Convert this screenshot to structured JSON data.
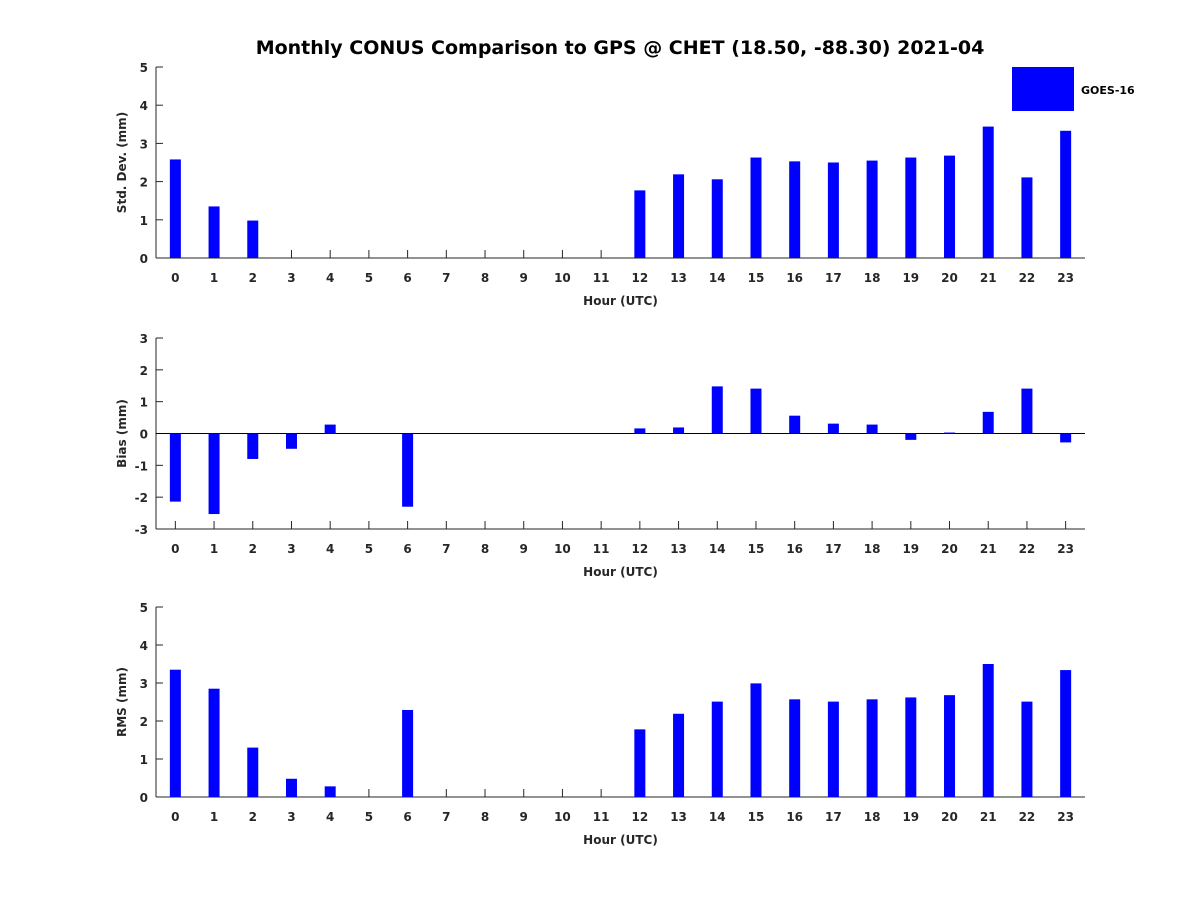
{
  "chart_data": {
    "title": "Monthly CONUS Comparison to GPS @ CHET (18.50, -88.30) 2021-04",
    "legend": {
      "label": "GOES-16",
      "placement": "top-right",
      "color": "#0000ff"
    },
    "bar_color": "#0000ff",
    "panels": [
      {
        "type": "bar",
        "ylabel": "Std. Dev. (mm)",
        "xlabel": "Hour (UTC)",
        "ylim": [
          0,
          5
        ],
        "yticks": [
          0,
          1,
          2,
          3,
          4,
          5
        ],
        "categories": [
          "0",
          "1",
          "2",
          "3",
          "4",
          "5",
          "6",
          "7",
          "8",
          "9",
          "10",
          "11",
          "12",
          "13",
          "14",
          "15",
          "16",
          "17",
          "18",
          "19",
          "20",
          "21",
          "22",
          "23"
        ],
        "values": [
          2.58,
          1.35,
          0.98,
          0,
          0,
          0,
          0,
          0,
          0,
          0,
          0,
          0,
          1.77,
          2.19,
          2.06,
          2.63,
          2.53,
          2.5,
          2.55,
          2.63,
          2.68,
          3.44,
          2.11,
          3.33
        ]
      },
      {
        "type": "bar",
        "ylabel": "Bias (mm)",
        "xlabel": "Hour (UTC)",
        "ylim": [
          -3,
          3
        ],
        "yticks": [
          -3,
          -2,
          -1,
          0,
          1,
          2,
          3
        ],
        "categories": [
          "0",
          "1",
          "2",
          "3",
          "4",
          "5",
          "6",
          "7",
          "8",
          "9",
          "10",
          "11",
          "12",
          "13",
          "14",
          "15",
          "16",
          "17",
          "18",
          "19",
          "20",
          "21",
          "22",
          "23"
        ],
        "values": [
          -2.14,
          -2.53,
          -0.8,
          -0.48,
          0.28,
          0,
          -2.3,
          0,
          0,
          0,
          0,
          0,
          0.16,
          0.19,
          1.48,
          1.41,
          0.56,
          0.31,
          0.28,
          -0.2,
          0.03,
          0.68,
          1.41,
          -0.28
        ]
      },
      {
        "type": "bar",
        "ylabel": "RMS (mm)",
        "xlabel": "Hour (UTC)",
        "ylim": [
          0,
          5
        ],
        "yticks": [
          0,
          1,
          2,
          3,
          4,
          5
        ],
        "categories": [
          "0",
          "1",
          "2",
          "3",
          "4",
          "5",
          "6",
          "7",
          "8",
          "9",
          "10",
          "11",
          "12",
          "13",
          "14",
          "15",
          "16",
          "17",
          "18",
          "19",
          "20",
          "21",
          "22",
          "23"
        ],
        "values": [
          3.35,
          2.85,
          1.3,
          0.48,
          0.28,
          0,
          2.29,
          0,
          0,
          0,
          0,
          0,
          1.78,
          2.19,
          2.51,
          2.99,
          2.57,
          2.51,
          2.57,
          2.62,
          2.68,
          3.5,
          2.51,
          3.34
        ]
      }
    ]
  }
}
